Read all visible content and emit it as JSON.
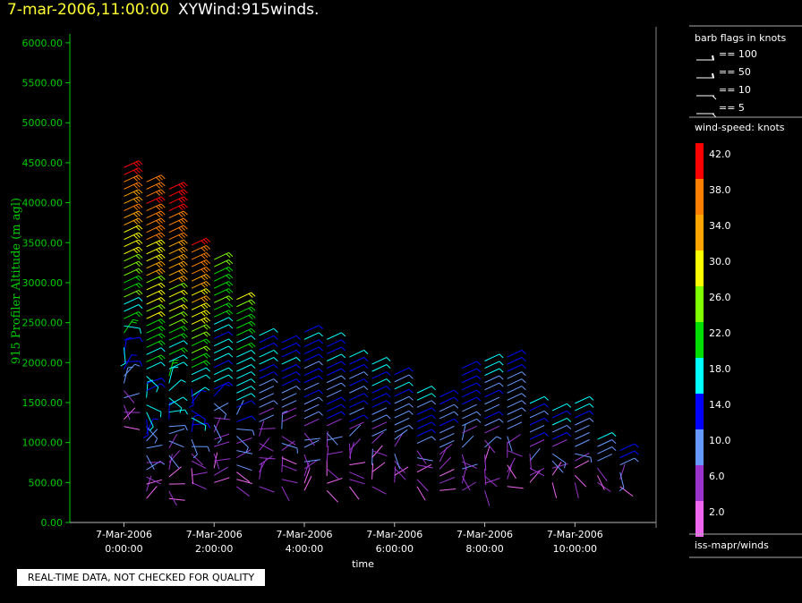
{
  "header": {
    "timestamp": "7-mar-2006,11:00:00",
    "title": "XYWind:915winds."
  },
  "notice": "REAL-TIME DATA, NOT CHECKED FOR QUALITY",
  "legend": {
    "barb_title": "barb flags in knots",
    "barb_items": [
      "== 100",
      "== 50",
      "== 10",
      "== 5"
    ],
    "speed_title": "wind-speed: knots",
    "speed_scale": [
      {
        "label": "42.0",
        "color": "#ff0000"
      },
      {
        "label": "38.0",
        "color": "#ff7f00"
      },
      {
        "label": "34.0",
        "color": "#ffa500"
      },
      {
        "label": "30.0",
        "color": "#ffff00"
      },
      {
        "label": "26.0",
        "color": "#7fff00"
      },
      {
        "label": "22.0",
        "color": "#00dd00"
      },
      {
        "label": "18.0",
        "color": "#00ffff"
      },
      {
        "label": "14.0",
        "color": "#0000ff"
      },
      {
        "label": "10.0",
        "color": "#6699ff"
      },
      {
        "label": "6.0",
        "color": "#9933cc"
      },
      {
        "label": "2.0",
        "color": "#ee66ee"
      }
    ],
    "source": "iss-mapr/winds"
  },
  "chart_data": {
    "type": "scatter",
    "ylabel": "915 Profiler Altitude (m agl)",
    "xlabel": "time",
    "ylim": [
      0,
      6200
    ],
    "yticks": [
      "0.00",
      "500.00",
      "1000.00",
      "1500.00",
      "2000.00",
      "2500.00",
      "3000.00",
      "3500.00",
      "4000.00",
      "4500.00",
      "5000.00",
      "5500.00",
      "6000.00"
    ],
    "xticks": [
      {
        "hour": 0,
        "date": "7-Mar-2006",
        "time": "0:00:00"
      },
      {
        "hour": 2,
        "date": "7-Mar-2006",
        "time": "2:00:00"
      },
      {
        "hour": 4,
        "date": "7-Mar-2006",
        "time": "4:00:00"
      },
      {
        "hour": 6,
        "date": "7-Mar-2006",
        "time": "6:00:00"
      },
      {
        "hour": 8,
        "date": "7-Mar-2006",
        "time": "8:00:00"
      },
      {
        "hour": 10,
        "date": "7-Mar-2006",
        "time": "10:00:00"
      }
    ],
    "xlim": [
      -1.2,
      11.8
    ],
    "profiles": [
      {
        "hour": 0.0,
        "top": 4500,
        "bottom": 1200
      },
      {
        "hour": 0.5,
        "top": 4300,
        "bottom": 300
      },
      {
        "hour": 1.0,
        "top": 4200,
        "bottom": 300
      },
      {
        "hour": 1.5,
        "top": 3550,
        "bottom": 500
      },
      {
        "hour": 2.0,
        "top": 3350,
        "bottom": 500
      },
      {
        "hour": 2.5,
        "top": 2800,
        "bottom": 450
      },
      {
        "hour": 3.0,
        "top": 2350,
        "bottom": 450
      },
      {
        "hour": 3.5,
        "top": 2250,
        "bottom": 450
      },
      {
        "hour": 4.0,
        "top": 2400,
        "bottom": 400
      },
      {
        "hour": 4.5,
        "top": 2300,
        "bottom": 400
      },
      {
        "hour": 5.0,
        "top": 2100,
        "bottom": 450
      },
      {
        "hour": 5.5,
        "top": 2000,
        "bottom": 450
      },
      {
        "hour": 6.0,
        "top": 1900,
        "bottom": 500
      },
      {
        "hour": 6.5,
        "top": 1700,
        "bottom": 450
      },
      {
        "hour": 7.0,
        "top": 1600,
        "bottom": 400
      },
      {
        "hour": 7.5,
        "top": 2000,
        "bottom": 400
      },
      {
        "hour": 8.0,
        "top": 2100,
        "bottom": 400
      },
      {
        "hour": 8.5,
        "top": 2150,
        "bottom": 450
      },
      {
        "hour": 9.0,
        "top": 1500,
        "bottom": 500
      },
      {
        "hour": 9.5,
        "top": 1400,
        "bottom": 500
      },
      {
        "hour": 10.0,
        "top": 1500,
        "bottom": 500
      },
      {
        "hour": 10.5,
        "top": 1100,
        "bottom": 500
      },
      {
        "hour": 11.0,
        "top": 900,
        "bottom": 450
      }
    ]
  }
}
